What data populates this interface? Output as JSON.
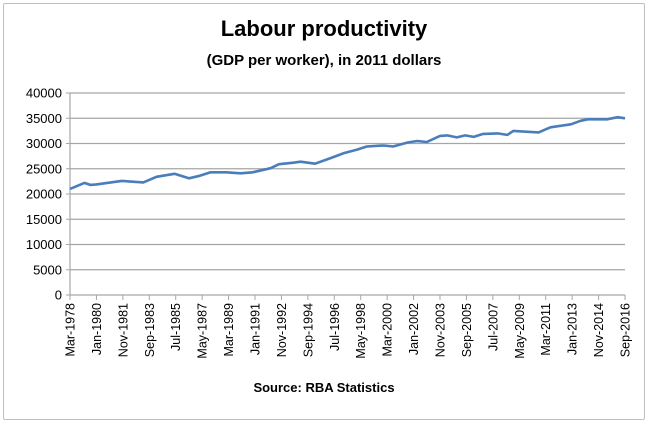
{
  "chart_data": {
    "type": "line",
    "title": "Labour productivity",
    "subtitle": "(GDP per worker), in 2011 dollars",
    "source": "Source: RBA Statistics",
    "xlabel": "",
    "ylabel": "",
    "ylim": [
      0,
      40000
    ],
    "yticks": [
      0,
      5000,
      10000,
      15000,
      20000,
      25000,
      30000,
      35000,
      40000
    ],
    "grid": true,
    "legend": "none",
    "x_tick_labels": [
      "Mar-1978",
      "Jan-1980",
      "Nov-1981",
      "Sep-1983",
      "Jul-1985",
      "May-1987",
      "Mar-1989",
      "Jan-1991",
      "Nov-1992",
      "Sep-1994",
      "Jul-1996",
      "May-1998",
      "Mar-2000",
      "Jan-2002",
      "Nov-2003",
      "Sep-2005",
      "Jul-2007",
      "May-2009",
      "Mar-2011",
      "Jan-2013",
      "Nov-2014",
      "Sep-2016"
    ],
    "x_unit": "months since Mar-1978",
    "x_range": [
      0,
      462
    ],
    "series": [
      {
        "name": "Labour productivity",
        "color": "#4a7ebb",
        "x": [
          0,
          12,
          17,
          22,
          43,
          61,
          72,
          87,
          99,
          108,
          117,
          130,
          142,
          152,
          167,
          174,
          186,
          192,
          204,
          218,
          228,
          239,
          247,
          261,
          269,
          281,
          289,
          297,
          308,
          314,
          322,
          329,
          336,
          344,
          356,
          364,
          369,
          390,
          400,
          417,
          425,
          431,
          447,
          456,
          462
        ],
        "values": [
          21000,
          22200,
          21800,
          21900,
          22600,
          22300,
          23400,
          24000,
          23100,
          23600,
          24300,
          24300,
          24100,
          24300,
          25100,
          25900,
          26200,
          26400,
          26000,
          27200,
          28100,
          28800,
          29400,
          29600,
          29400,
          30200,
          30500,
          30300,
          31500,
          31600,
          31200,
          31600,
          31300,
          31900,
          32000,
          31700,
          32500,
          32200,
          33200,
          33800,
          34500,
          34800,
          34800,
          35200,
          35000
        ]
      }
    ]
  }
}
